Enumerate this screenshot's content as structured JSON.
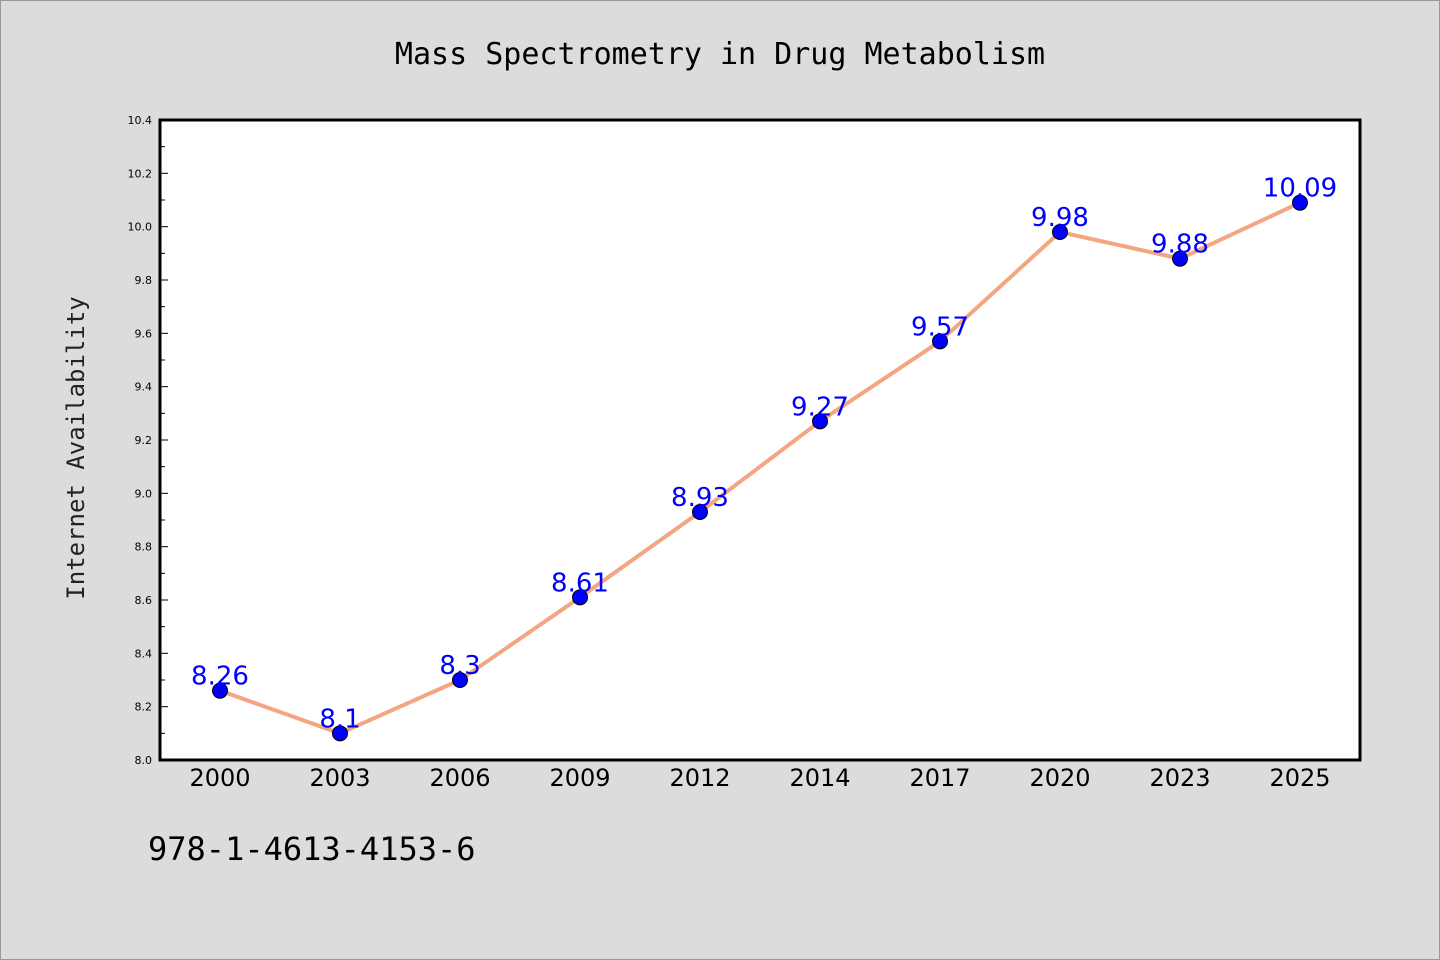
{
  "chart_data": {
    "type": "line",
    "title": "Mass Spectrometry in Drug Metabolism",
    "xlabel": "",
    "ylabel": "Internet Availability",
    "categories": [
      "2000",
      "2003",
      "2006",
      "2009",
      "2012",
      "2014",
      "2017",
      "2020",
      "2023",
      "2025"
    ],
    "series": [
      {
        "values": [
          8.26,
          8.1,
          8.3,
          8.61,
          8.93,
          9.27,
          9.57,
          9.98,
          9.88,
          10.09
        ],
        "data_labels": [
          "8.26",
          "8.1",
          "8.3",
          "8.61",
          "8.93",
          "9.27",
          "9.57",
          "9.98",
          "9.88",
          "10.09"
        ],
        "line_color": "#f4a582",
        "marker_color": "#0000ff",
        "label_color": "#0000ff"
      }
    ],
    "ylim": [
      8.0,
      10.4
    ],
    "yticks": [
      "8.0",
      "8.2",
      "8.4",
      "8.6",
      "8.8",
      "9.0",
      "9.2",
      "9.4",
      "9.6",
      "9.8",
      "10.0",
      "10.2",
      "10.4"
    ],
    "grid": false,
    "legend": "none"
  },
  "footer_note": "978-1-4613-4153-6",
  "colors": {
    "background": "#dcdcdc",
    "plot_background": "#ffffff",
    "axis": "#000000"
  }
}
